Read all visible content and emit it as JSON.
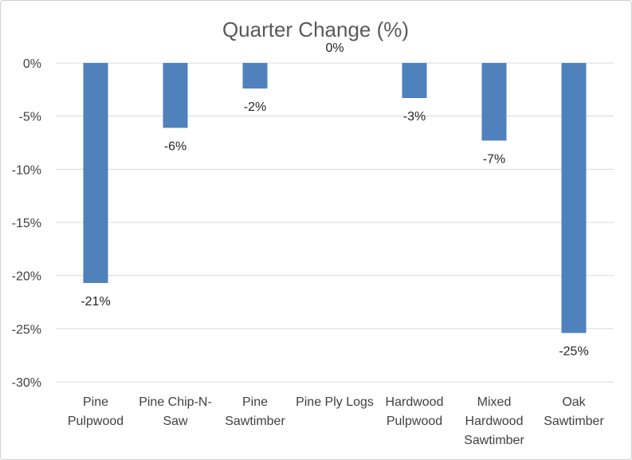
{
  "chart_data": {
    "type": "bar",
    "title": "Quarter Change (%)",
    "categories": [
      [
        "Pine",
        "Pulpwood"
      ],
      [
        "Pine Chip-N-",
        "Saw"
      ],
      [
        "Pine",
        "Sawtimber"
      ],
      [
        "Pine Ply Logs"
      ],
      [
        "Hardwood",
        "Pulpwood"
      ],
      [
        "Mixed",
        "Hardwood",
        "Sawtimber"
      ],
      [
        "Oak",
        "Sawtimber"
      ]
    ],
    "values": [
      -20.7,
      -6.1,
      -2.4,
      0,
      -3.3,
      -7.3,
      -25.4
    ],
    "data_labels": [
      "-21%",
      "-6%",
      "-2%",
      "0%",
      "-3%",
      "-7%",
      "-25%"
    ],
    "ylim": [
      -30,
      0
    ],
    "yticks": [
      0,
      -5,
      -10,
      -15,
      -20,
      -25,
      -30
    ],
    "ytick_labels": [
      "0%",
      "-5%",
      "-10%",
      "-15%",
      "-20%",
      "-25%",
      "-30%"
    ],
    "grid": true,
    "legend": "none",
    "bar_color": "#4f81bd"
  }
}
